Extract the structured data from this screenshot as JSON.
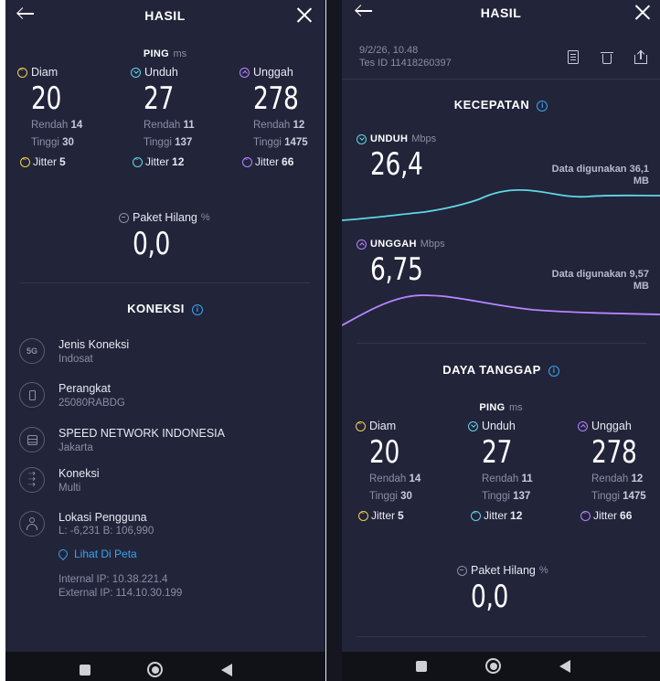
{
  "left": {
    "header_title": "HASIL",
    "ping": {
      "label": "PING",
      "unit": "ms",
      "columns": [
        {
          "name": "Diam",
          "value": "20",
          "low_label": "Rendah",
          "low": "14",
          "high_label": "Tinggi",
          "high": "30",
          "jitter_label": "Jitter",
          "jitter": "5"
        },
        {
          "name": "Unduh",
          "value": "27",
          "low_label": "Rendah",
          "low": "11",
          "high_label": "Tinggi",
          "high": "137",
          "jitter_label": "Jitter",
          "jitter": "12"
        },
        {
          "name": "Unggah",
          "value": "278",
          "low_label": "Rendah",
          "low": "12",
          "high_label": "Tinggi",
          "high": "1475",
          "jitter_label": "Jitter",
          "jitter": "66"
        }
      ]
    },
    "packet_loss": {
      "label": "Paket Hilang",
      "unit": "%",
      "value": "0,0"
    },
    "connection": {
      "title": "KONEKSI",
      "items": [
        {
          "icon": "5g-icon",
          "icon_text": "5G",
          "title": "Jenis Koneksi",
          "subtitle": "Indosat"
        },
        {
          "icon": "phone-icon",
          "icon_text": "",
          "title": "Perangkat",
          "subtitle": "25080RABDG"
        },
        {
          "icon": "server-icon",
          "icon_text": "",
          "title": "SPEED NETWORK INDONESIA",
          "subtitle": "Jakarta"
        },
        {
          "icon": "connections-icon",
          "icon_text": "",
          "title": "Koneksi",
          "subtitle": "Multi"
        },
        {
          "icon": "user-icon",
          "icon_text": "",
          "title": "Lokasi Pengguna",
          "subtitle": "L: -6,231 B: 106,990"
        }
      ],
      "map_link": "Lihat Di Peta",
      "internal_ip": "Internal IP: 10.38.221.4",
      "external_ip": "External IP: 114.10.30.199"
    }
  },
  "right": {
    "header_title": "HASIL",
    "date": "9/2/26, 10.48",
    "test_id": "Tes ID 11418260397",
    "speed_title": "KECEPATAN",
    "download": {
      "label": "UNDUH",
      "unit": "Mbps",
      "value": "26,4",
      "data_used": "Data digunakan 36,1 MB"
    },
    "upload": {
      "label": "UNGGAH",
      "unit": "Mbps",
      "value": "6,75",
      "data_used": "Data digunakan 9,57 MB"
    },
    "responsiveness_title": "DAYA TANGGAP",
    "ping": {
      "label": "PING",
      "unit": "ms",
      "columns": [
        {
          "name": "Diam",
          "value": "20",
          "low_label": "Rendah",
          "low": "14",
          "high_label": "Tinggi",
          "high": "30",
          "jitter_label": "Jitter",
          "jitter": "5"
        },
        {
          "name": "Unduh",
          "value": "27",
          "low_label": "Rendah",
          "low": "11",
          "high_label": "Tinggi",
          "high": "137",
          "jitter_label": "Jitter",
          "jitter": "12"
        },
        {
          "name": "Unggah",
          "value": "278",
          "low_label": "Rendah",
          "low": "12",
          "high_label": "Tinggi",
          "high": "1475",
          "jitter_label": "Jitter",
          "jitter": "66"
        }
      ]
    },
    "packet_loss": {
      "label": "Paket Hilang",
      "unit": "%",
      "value": "0,0"
    }
  },
  "colors": {
    "background": "#22243a",
    "download": "#5fd7e6",
    "upload": "#b685ff",
    "idle": "#f0d14a",
    "link": "#39a4ee"
  }
}
